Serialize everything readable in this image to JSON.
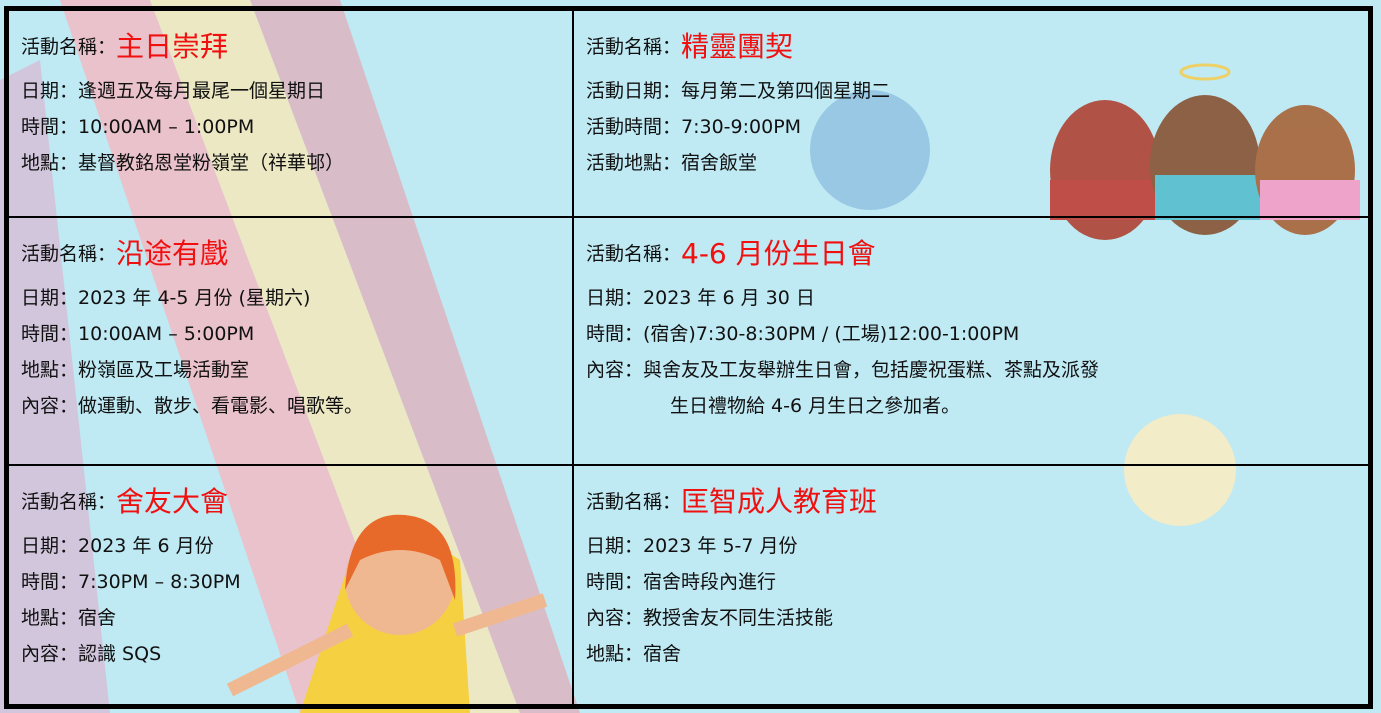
{
  "cells": [
    {
      "label": "活動名稱：",
      "name": "主日崇拜",
      "lines": [
        {
          "label": "日期：",
          "value": "逢週五及每月最尾一個星期日"
        },
        {
          "label": "時間：",
          "value": "10:00AM – 1:00PM"
        },
        {
          "label": "地點：",
          "value": "基督教銘恩堂粉嶺堂（祥華邨）"
        }
      ]
    },
    {
      "label": "活動名稱：",
      "name": "精靈團契",
      "lines": [
        {
          "label": "活動日期：",
          "value": "每月第二及第四個星期二"
        },
        {
          "label": "活動時間：",
          "value": "7:30-9:00PM"
        },
        {
          "label": "活動地點：",
          "value": "宿舍飯堂"
        }
      ]
    },
    {
      "label": "活動名稱：",
      "name": "沿途有戲",
      "lines": [
        {
          "label": "日期：",
          "value": "2023 年 4-5 月份 (星期六)"
        },
        {
          "label": "時間：",
          "value": "10:00AM – 5:00PM"
        },
        {
          "label": "地點：",
          "value": "粉嶺區及工場活動室"
        },
        {
          "label": "內容：",
          "value": "做運動、散步、看電影、唱歌等。"
        }
      ]
    },
    {
      "label": "活動名稱：",
      "name": "4-6 月份生日會",
      "lines": [
        {
          "label": "日期：",
          "value": "2023 年 6 月 30 日"
        },
        {
          "label": "時間：",
          "value": "(宿舍)7:30-8:30PM / (工場)12:00-1:00PM"
        },
        {
          "label": "內容：",
          "value": "與舍友及工友舉辦生日會，包括慶祝蛋糕、茶點及派發"
        },
        {
          "value": "生日禮物給 4-6 月生日之參加者。"
        }
      ]
    },
    {
      "label": "活動名稱：",
      "name": "舍友大會",
      "lines": [
        {
          "label": "日期：",
          "value": "2023 年 6 月份"
        },
        {
          "label": "時間：",
          "value": "7:30PM – 8:30PM"
        },
        {
          "label": "地點：",
          "value": "宿舍"
        },
        {
          "label": "內容：",
          "value": "認識 SQS"
        }
      ]
    },
    {
      "label": "活動名稱：",
      "name": "匡智成人教育班",
      "lines": [
        {
          "label": "日期：",
          "value": "2023 年 5-7 月份"
        },
        {
          "label": "時間：",
          "value": "宿舍時段內進行"
        },
        {
          "label": "內容：",
          "value": "教授舍友不同生活技能"
        },
        {
          "label": "地點：",
          "value": "宿舍"
        }
      ]
    }
  ]
}
